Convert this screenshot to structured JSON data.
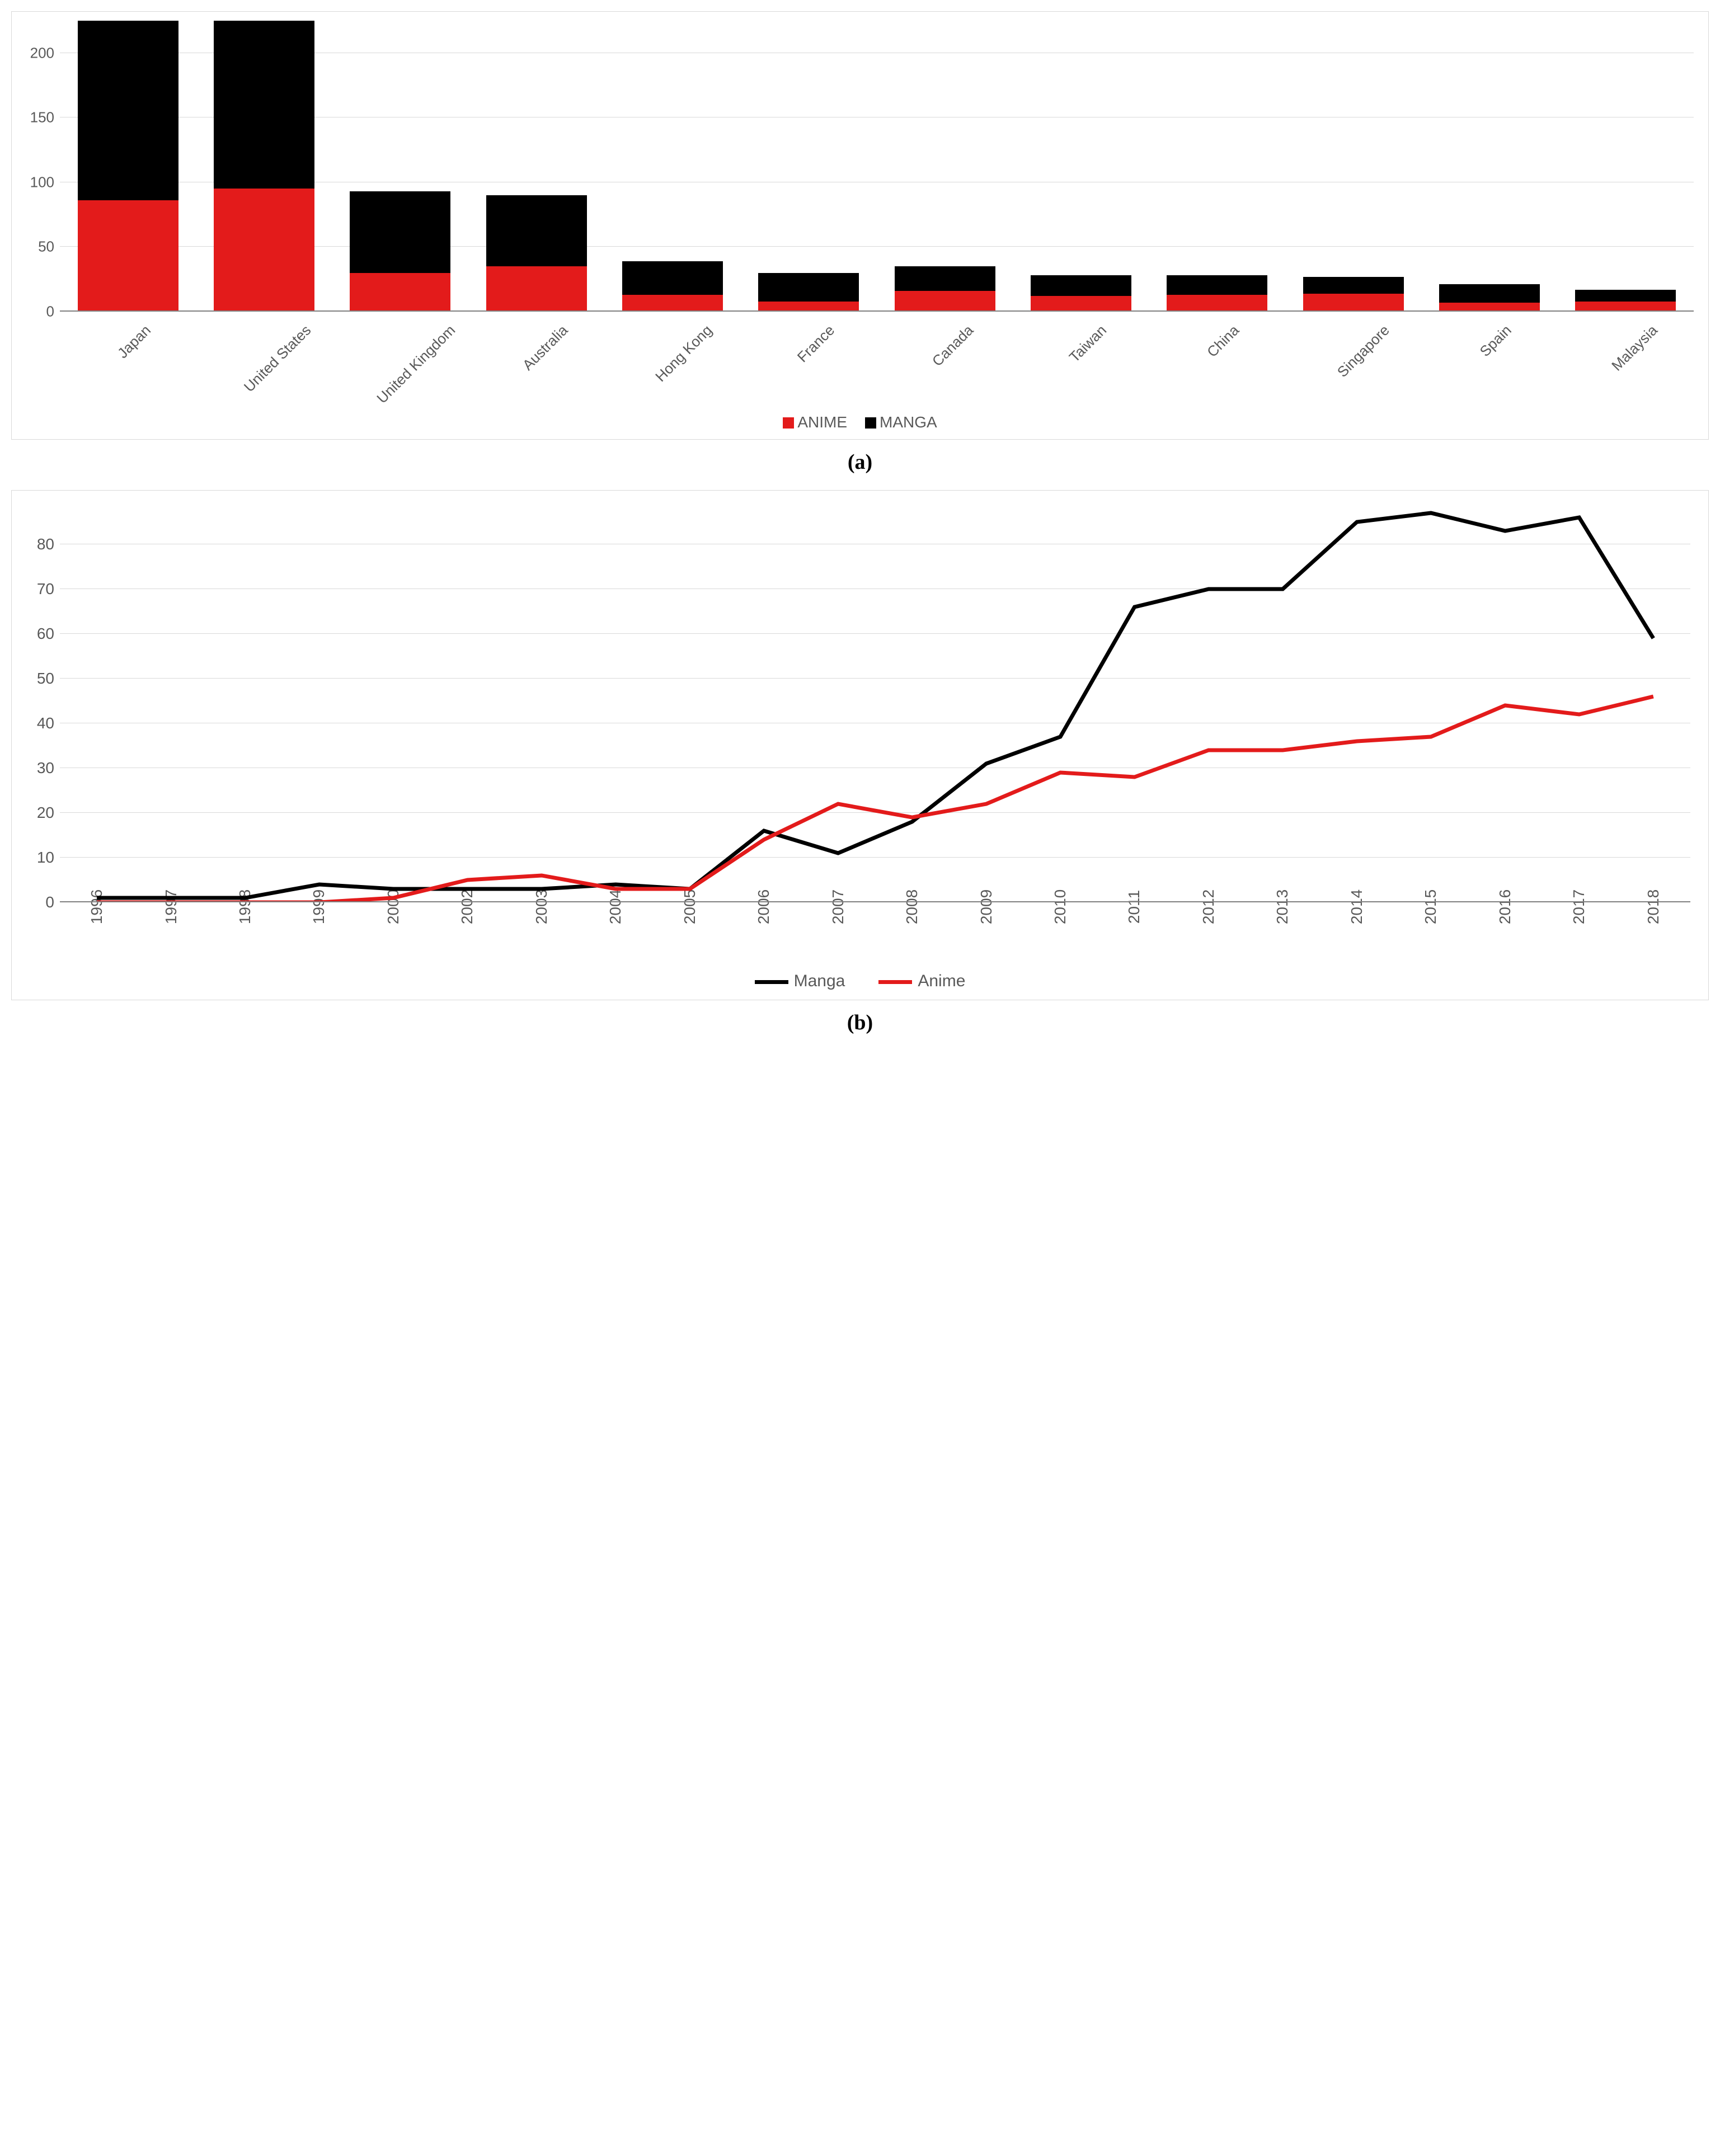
{
  "caption_a": "(a)",
  "caption_b": "(b)",
  "bar_chart": {
    "type": "stacked-bar",
    "background_color": "#ffffff",
    "grid_color": "#d9d9d9",
    "axis_color": "#808080",
    "tick_label_color": "#595959",
    "tick_fontsize": 26,
    "ylim_max": 225,
    "yticks": [
      0,
      50,
      100,
      150,
      200
    ],
    "categories": [
      "Japan",
      "United States",
      "United Kingdom",
      "Australia",
      "Hong Kong",
      "France",
      "Canada",
      "Taiwan",
      "China",
      "Singapore",
      "Spain",
      "Malaysia"
    ],
    "series": [
      {
        "name": "ANIME",
        "color": "#e31b1b",
        "values": [
          86,
          95,
          30,
          35,
          13,
          8,
          16,
          12,
          13,
          14,
          7,
          8
        ]
      },
      {
        "name": "MANGA",
        "color": "#000000",
        "values": [
          139,
          130,
          63,
          55,
          26,
          22,
          19,
          16,
          15,
          13,
          14,
          9
        ]
      }
    ],
    "legend_items": [
      {
        "label": "ANIME",
        "color": "#e31b1b"
      },
      {
        "label": "MANGA",
        "color": "#000000"
      }
    ],
    "bar_width_pct": 74
  },
  "line_chart": {
    "type": "line",
    "background_color": "#ffffff",
    "grid_color": "#d9d9d9",
    "axis_color": "#808080",
    "tick_label_color": "#595959",
    "tick_fontsize": 28,
    "line_width": 7,
    "ylim_max": 90,
    "yticks": [
      0,
      10,
      20,
      30,
      40,
      50,
      60,
      70,
      80
    ],
    "x_labels": [
      "1996",
      "1997",
      "1998",
      "1999",
      "2000",
      "2002",
      "2003",
      "2004",
      "2005",
      "2006",
      "2007",
      "2008",
      "2009",
      "2010",
      "2011",
      "2012",
      "2013",
      "2014",
      "2015",
      "2016",
      "2017",
      "2018"
    ],
    "series": [
      {
        "name": "Manga",
        "color": "#000000",
        "values": [
          1,
          1,
          1,
          4,
          3,
          3,
          3,
          4,
          3,
          16,
          11,
          18,
          31,
          37,
          66,
          70,
          70,
          85,
          87,
          83,
          86,
          59
        ]
      },
      {
        "name": "Anime",
        "color": "#e31b1b",
        "values": [
          0,
          0,
          0,
          0,
          1,
          5,
          6,
          3,
          3,
          14,
          22,
          19,
          22,
          29,
          28,
          34,
          34,
          36,
          37,
          44,
          42,
          46
        ]
      }
    ],
    "legend_items": [
      {
        "label": "Manga",
        "color": "#000000"
      },
      {
        "label": "Anime",
        "color": "#e31b1b"
      }
    ]
  }
}
